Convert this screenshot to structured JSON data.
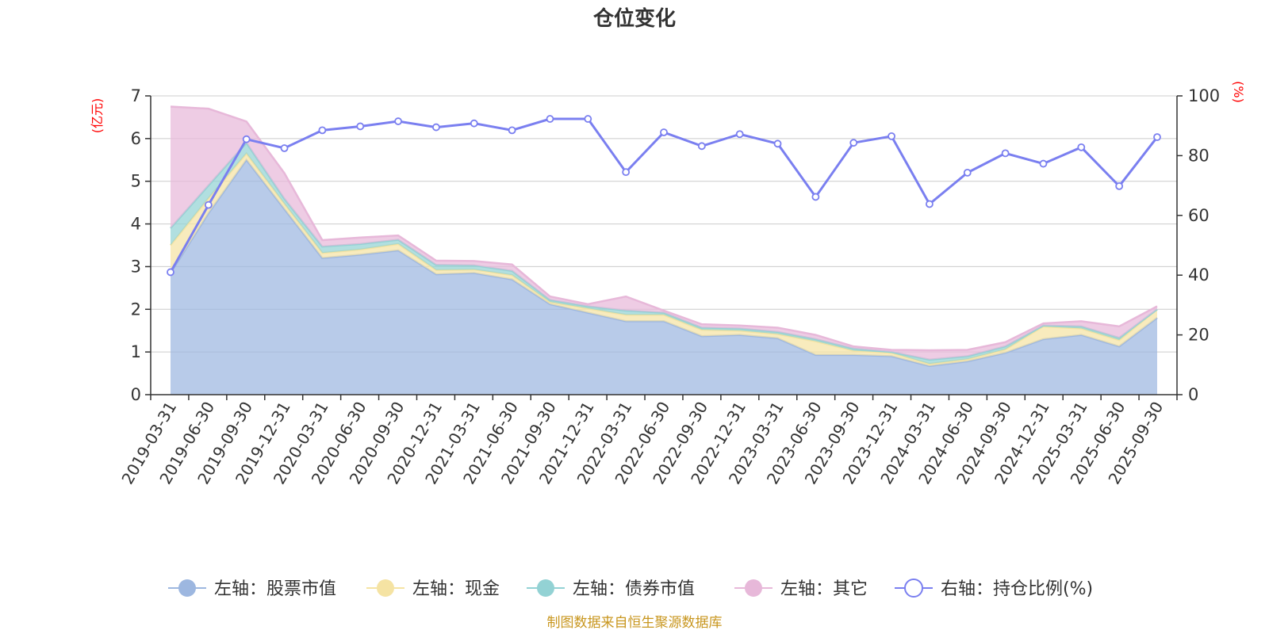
{
  "chart_data": {
    "type": "area",
    "title": "仓位变化",
    "left_unit": "(亿元)",
    "right_unit": "(%)",
    "categories": [
      "2019-03-31",
      "2019-06-30",
      "2019-09-30",
      "2019-12-31",
      "2020-03-31",
      "2020-06-30",
      "2020-09-30",
      "2020-12-31",
      "2021-03-31",
      "2021-06-30",
      "2021-09-30",
      "2021-12-31",
      "2022-03-31",
      "2022-06-30",
      "2022-09-30",
      "2022-12-31",
      "2023-03-31",
      "2023-06-30",
      "2023-09-30",
      "2023-12-31",
      "2024-03-31",
      "2024-06-30",
      "2024-09-30",
      "2024-12-31",
      "2025-03-31",
      "2025-06-30",
      "2025-09-30"
    ],
    "left_axis": {
      "min": 0,
      "max": 7,
      "ticks": [
        "0",
        "1",
        "2",
        "3",
        "4",
        "5",
        "6",
        "7"
      ]
    },
    "right_axis": {
      "min": 0,
      "max": 100,
      "ticks": [
        "0",
        "20",
        "40",
        "60",
        "80",
        "100"
      ]
    },
    "series": [
      {
        "name": "左轴：股票市值",
        "axis": "left",
        "type": "stacked-area",
        "color": "#9db7e0",
        "values": [
          2.85,
          4.25,
          5.5,
          4.35,
          3.2,
          3.28,
          3.38,
          2.82,
          2.85,
          2.7,
          2.12,
          1.92,
          1.72,
          1.72,
          1.37,
          1.4,
          1.32,
          0.93,
          0.93,
          0.9,
          0.67,
          0.78,
          0.98,
          1.3,
          1.4,
          1.13,
          1.8
        ]
      },
      {
        "name": "左轴：现金",
        "axis": "left",
        "type": "stacked-area",
        "color": "#f5e3a3",
        "values": [
          0.65,
          0.35,
          0.15,
          0.12,
          0.12,
          0.12,
          0.15,
          0.1,
          0.08,
          0.1,
          0.05,
          0.1,
          0.15,
          0.15,
          0.15,
          0.1,
          0.1,
          0.32,
          0.1,
          0.08,
          0.05,
          0.05,
          0.08,
          0.3,
          0.15,
          0.15,
          0.2
        ]
      },
      {
        "name": "左轴：债券市值",
        "axis": "left",
        "type": "stacked-area",
        "color": "#93d2d4",
        "values": [
          0.4,
          0.3,
          0.25,
          0.12,
          0.15,
          0.13,
          0.1,
          0.12,
          0.1,
          0.1,
          0.05,
          0.05,
          0.1,
          0.05,
          0.05,
          0.05,
          0.05,
          0.05,
          0.05,
          0.02,
          0.1,
          0.07,
          0.07,
          0.02,
          0.05,
          0.05,
          0.0
        ]
      },
      {
        "name": "左轴：其它",
        "axis": "left",
        "type": "stacked-area",
        "color": "#e7b8d9",
        "values": [
          2.85,
          1.8,
          0.5,
          0.6,
          0.15,
          0.15,
          0.1,
          0.1,
          0.1,
          0.15,
          0.08,
          0.05,
          0.33,
          0.05,
          0.08,
          0.07,
          0.1,
          0.1,
          0.05,
          0.05,
          0.22,
          0.15,
          0.1,
          0.05,
          0.12,
          0.27,
          0.07
        ]
      },
      {
        "name": "右轴：持仓比例(%)",
        "axis": "right",
        "type": "line",
        "color": "#7a7ff0",
        "values": [
          41,
          63.5,
          85.5,
          82.5,
          88.5,
          89.8,
          91.5,
          89.5,
          90.8,
          88.5,
          92.3,
          92.3,
          74.5,
          87.8,
          83.2,
          87.2,
          84,
          66.2,
          84.3,
          86.5,
          63.8,
          74.3,
          80.8,
          77.3,
          82.8,
          69.8,
          86.2
        ]
      }
    ]
  },
  "source_text": "制图数据来自恒生聚源数据库"
}
